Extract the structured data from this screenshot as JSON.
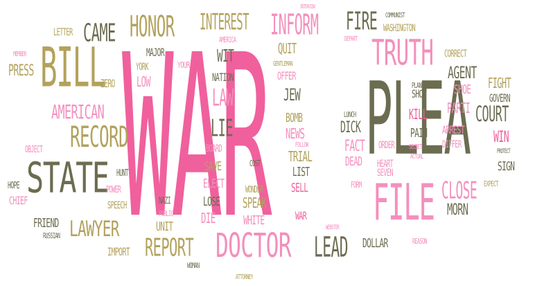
{
  "words": {
    "war": "WAR",
    "plea": "PLEA",
    "state": "STATE",
    "bill": "BILL",
    "file": "FILE",
    "truth": "TRUTH",
    "doctor": "DOCTOR",
    "record": "RECORD",
    "lawyer": "LAWYER",
    "report": "REPORT",
    "honor": "HONOR",
    "inform": "INFORM",
    "interest": "INTEREST",
    "came": "CAME",
    "fire": "FIRE",
    "american": "AMERICAN",
    "court": "COURT",
    "lead": "LEAD",
    "close": "CLOSE",
    "agent": "AGENT",
    "law": "LAW",
    "lie": "LIE",
    "press": "PRESS",
    "wit": "WIT",
    "fight": "FIGHT",
    "govern": "GOVERN",
    "kill": "KILL",
    "parti": "PARTI",
    "win": "WIN",
    "fact": "FACT",
    "dick": "DICK",
    "jew": "JEW",
    "quit": "QUIT",
    "major": "MAJOR",
    "low": "LOW",
    "york": "YORK",
    "zero": "ZERO",
    "letter": "LETTER",
    "member": "MEMBER",
    "america": "AMERICA",
    "your": "YOUR",
    "nation": "NATION",
    "gentleman": "GENTLEMAN",
    "offer": "OFFER",
    "interview": "INTERVIEW",
    "depart": "DEPART",
    "communist": "COMMUNIST",
    "washington": "WASHINGTON",
    "correct": "CORRECT",
    "shot": "SHOT",
    "plane": "PLANE",
    "shoe": "SHOE",
    "pain": "PAIN",
    "arrest": "ARREST",
    "differ": "DIFFER",
    "protect": "PROTECT",
    "sign": "SIGN",
    "expect": "EXPECT",
    "morn": "MORN",
    "reason": "REASON",
    "dollar": "DOLLAR",
    "webster": "WEBSTER",
    "attorney": "ATTORNEY",
    "woman": "WOMAN",
    "import": "IMPORT",
    "russian": "RUSSIAN",
    "friend": "FRIEND",
    "chief": "CHIEF",
    "hope": "HOPE",
    "object": "OBJECT",
    "hunt": "HUNT",
    "power": "POWER",
    "speech": "SPEECH",
    "nazi": "NAZI",
    "public": "PUBLIC",
    "unit": "UNIT",
    "die": "DIE",
    "lose": "LOSE",
    "elect": "ELECT",
    "save": "SAVE",
    "board": "BOARD",
    "cost": "COST",
    "wonder": "WONDER",
    "speak": "SPEAK",
    "white": "WHITE",
    "sell": "SELL",
    "list": "LIST",
    "trial": "TRIAL",
    "follow": "FOLLOW",
    "news": "NEWS",
    "bomb": "BOMB",
    "lunch": "LUNCH",
    "dead": "DEAD",
    "order": "ORDER",
    "heart": "HEART",
    "seven": "SEVEN",
    "form": "FORM",
    "secret": "SECRET",
    "actual": "ACTUAL"
  },
  "colors": {
    "pink": "#f0609d",
    "light_pink": "#f48fbd",
    "gold": "#b2a25c",
    "dark_green": "#6c6c50",
    "gray": "#858275"
  }
}
